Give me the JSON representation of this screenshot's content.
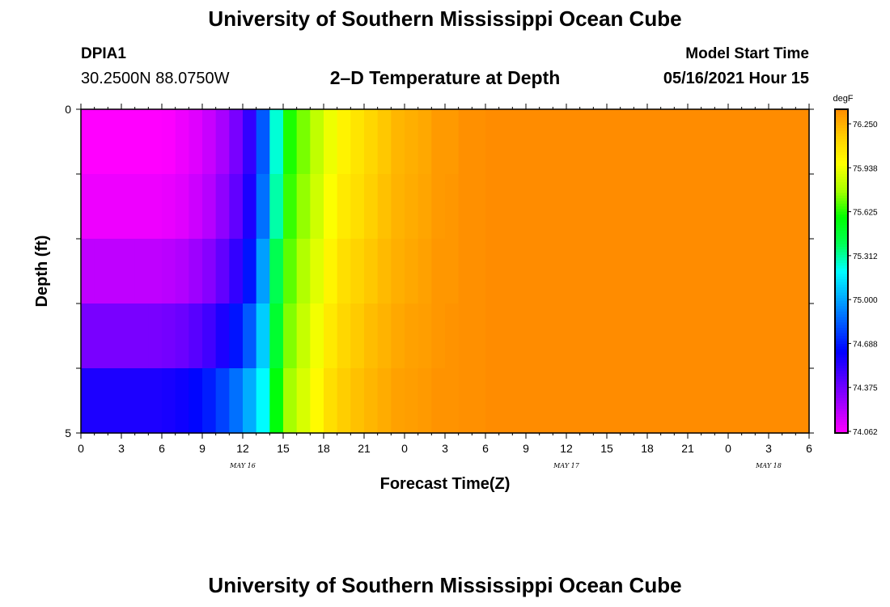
{
  "header": {
    "title": "University of Southern Mississippi Ocean Cube",
    "station_id": "DPIA1",
    "location": "30.2500N  88.0750W",
    "subtitle": "2–D Temperature at Depth",
    "model_start_label": "Model Start Time",
    "model_start_value": "05/16/2021 Hour 15"
  },
  "footer": {
    "title": "University of Southern Mississippi Ocean Cube"
  },
  "chart_data": {
    "type": "heatmap",
    "title": "2–D Temperature at Depth",
    "xlabel": "Forecast Time(Z)",
    "ylabel": "Depth (ft)",
    "x_hours": [
      0,
      54
    ],
    "y_depth_ft": [
      0,
      5
    ],
    "y_tick_labels": [
      "0",
      "5"
    ],
    "x_tick_labels": [
      "0",
      "3",
      "6",
      "9",
      "12",
      "15",
      "18",
      "21",
      "0",
      "3",
      "6",
      "9",
      "12",
      "15",
      "18",
      "21",
      "0",
      "3",
      "6"
    ],
    "date_labels": [
      {
        "text": "MAY 16",
        "hour": 12
      },
      {
        "text": "MAY 17",
        "hour": 36
      },
      {
        "text": "MAY 18",
        "hour": 51
      }
    ],
    "colorbar": {
      "unit": "degF",
      "min": 74.0625,
      "max": 76.25,
      "tick_labels": [
        "76.250",
        "75.938",
        "75.625",
        "75.312",
        "75.000",
        "74.688",
        "74.375",
        "74.062"
      ],
      "colors": [
        "#ff00ff",
        "#aa00ff",
        "#5500ff",
        "#0000ff",
        "#0055ff",
        "#00aaff",
        "#00ffff",
        "#00ff55",
        "#00ff00",
        "#aaff00",
        "#ffff00",
        "#ffcc00",
        "#ff8c00"
      ]
    },
    "depth_levels": 5,
    "time_steps": 54,
    "temperature_degF": [
      [
        74.06,
        74.06,
        74.06,
        74.06,
        74.06,
        74.06,
        74.07,
        74.1,
        74.13,
        74.18,
        74.25,
        74.35,
        74.5,
        74.8,
        75.2,
        75.55,
        75.65,
        75.75,
        75.85,
        75.93,
        75.98,
        76.03,
        76.08,
        76.13,
        76.15,
        76.17,
        76.21,
        76.21,
        76.24,
        76.24,
        76.25,
        76.25,
        76.25,
        76.25,
        76.25,
        76.25,
        76.25,
        76.25,
        76.25,
        76.25,
        76.25,
        76.25,
        76.25,
        76.25,
        76.25,
        76.25,
        76.25,
        76.25,
        76.25,
        76.25,
        76.25,
        76.25,
        76.25,
        76.25
      ],
      [
        74.1,
        74.1,
        74.1,
        74.1,
        74.1,
        74.1,
        74.11,
        74.13,
        74.17,
        74.22,
        74.3,
        74.4,
        74.55,
        74.85,
        75.25,
        75.58,
        75.68,
        75.78,
        75.88,
        75.96,
        76.0,
        76.05,
        76.1,
        76.14,
        76.16,
        76.18,
        76.21,
        76.22,
        76.24,
        76.24,
        76.25,
        76.25,
        76.25,
        76.25,
        76.25,
        76.25,
        76.25,
        76.25,
        76.25,
        76.25,
        76.25,
        76.25,
        76.25,
        76.25,
        76.25,
        76.25,
        76.25,
        76.25,
        76.25,
        76.25,
        76.25,
        76.25,
        76.25,
        76.25
      ],
      [
        74.2,
        74.2,
        74.2,
        74.2,
        74.2,
        74.2,
        74.21,
        74.23,
        74.27,
        74.32,
        74.4,
        74.5,
        74.65,
        74.95,
        75.35,
        75.62,
        75.72,
        75.82,
        75.92,
        76.0,
        76.04,
        76.08,
        76.12,
        76.15,
        76.17,
        76.19,
        76.22,
        76.22,
        76.24,
        76.24,
        76.25,
        76.25,
        76.25,
        76.25,
        76.25,
        76.25,
        76.25,
        76.25,
        76.25,
        76.25,
        76.25,
        76.25,
        76.25,
        76.25,
        76.25,
        76.25,
        76.25,
        76.25,
        76.25,
        76.25,
        76.25,
        76.25,
        76.25,
        76.25
      ],
      [
        74.35,
        74.35,
        74.35,
        74.35,
        74.35,
        74.35,
        74.36,
        74.38,
        74.42,
        74.47,
        74.55,
        74.65,
        74.8,
        75.05,
        75.42,
        75.66,
        75.76,
        75.86,
        75.96,
        76.03,
        76.07,
        76.11,
        76.14,
        76.17,
        76.19,
        76.2,
        76.22,
        76.23,
        76.24,
        76.24,
        76.25,
        76.25,
        76.25,
        76.25,
        76.25,
        76.25,
        76.25,
        76.25,
        76.25,
        76.25,
        76.25,
        76.25,
        76.25,
        76.25,
        76.25,
        76.25,
        76.25,
        76.25,
        76.25,
        76.25,
        76.25,
        76.25,
        76.25,
        76.25
      ],
      [
        74.55,
        74.55,
        74.55,
        74.55,
        74.55,
        74.55,
        74.56,
        74.58,
        74.62,
        74.67,
        74.75,
        74.85,
        74.98,
        75.15,
        75.5,
        75.7,
        75.8,
        75.9,
        76.0,
        76.06,
        76.1,
        76.13,
        76.16,
        76.19,
        76.2,
        76.21,
        76.23,
        76.23,
        76.24,
        76.24,
        76.25,
        76.25,
        76.25,
        76.25,
        76.25,
        76.25,
        76.25,
        76.25,
        76.25,
        76.25,
        76.25,
        76.25,
        76.25,
        76.25,
        76.25,
        76.25,
        76.25,
        76.25,
        76.25,
        76.25,
        76.25,
        76.25,
        76.25,
        76.25
      ]
    ]
  }
}
